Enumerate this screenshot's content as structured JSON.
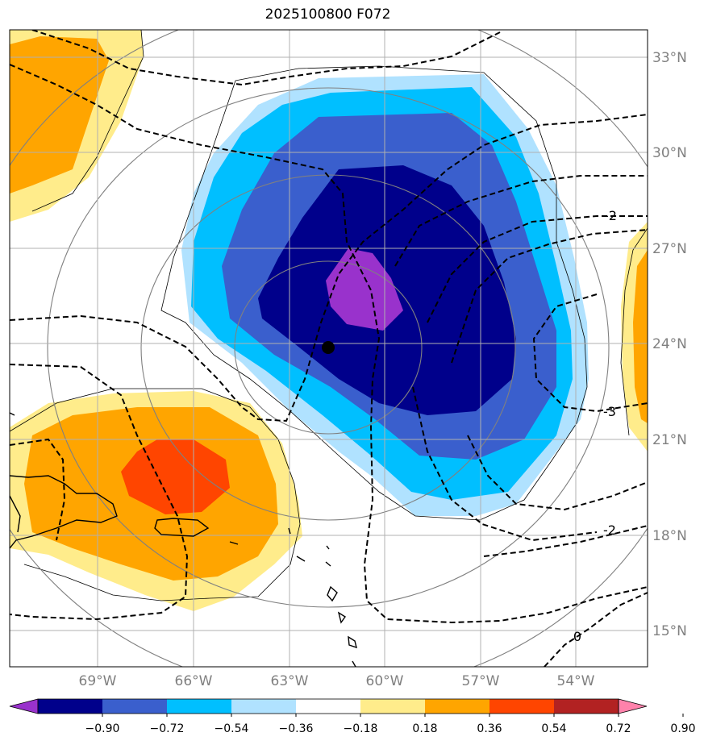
{
  "title": "2025100800 F072",
  "map": {
    "lon_range": [
      -71.7,
      -51.7
    ],
    "lat_range": [
      14.0,
      34.0
    ],
    "lon_ticks": [
      "69°W",
      "66°W",
      "63°W",
      "60°W",
      "57°W",
      "54°W"
    ],
    "lat_ticks": [
      "33°N",
      "30°N",
      "27°N",
      "24°N",
      "21°N",
      "18°N",
      "15°N"
    ],
    "center_marker": {
      "lon": -61.8,
      "lat": 23.9
    }
  },
  "contour_labels": [
    "-2",
    "-3",
    "-2",
    "0"
  ],
  "colorbar": {
    "levels": [
      "−0.90",
      "−0.72",
      "−0.54",
      "−0.36",
      "−0.18",
      "0.18",
      "0.36",
      "0.54",
      "0.72",
      "0.90"
    ],
    "colors": [
      "#9932cc",
      "#00008b",
      "#3a5fcd",
      "#00bfff",
      "#b0e2ff",
      "#ffffff",
      "#ffec8b",
      "#ffa500",
      "#ff4500",
      "#b22222",
      "#ff82ab"
    ]
  }
}
